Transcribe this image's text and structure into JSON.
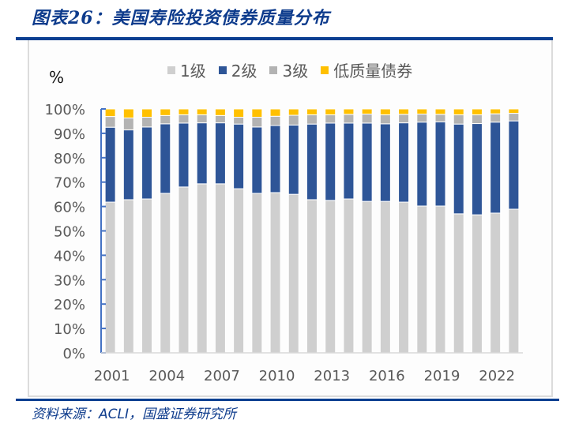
{
  "figure": {
    "title": "图表26：美国寿险投资债券质量分布",
    "source": "资料来源：ACLI，国盛证券研究所",
    "source_parts": [
      "资料来源：",
      "ACLI",
      "，国盛证券研究所"
    ]
  },
  "chart_data": {
    "type": "bar",
    "stacked": true,
    "title": "美国寿险投资债券质量分布",
    "unit_label": "%",
    "xlabel": "",
    "ylabel": "%",
    "ylim": [
      0,
      100
    ],
    "y_ticks": [
      "0%",
      "10%",
      "20%",
      "30%",
      "40%",
      "50%",
      "60%",
      "70%",
      "80%",
      "90%",
      "100%"
    ],
    "x_tick_labels": [
      "2001",
      "2004",
      "2007",
      "2010",
      "2013",
      "2016",
      "2019",
      "2022"
    ],
    "legend_position": "top",
    "grid": false,
    "categories": [
      "2001",
      "2002",
      "2003",
      "2004",
      "2005",
      "2006",
      "2007",
      "2008",
      "2009",
      "2010",
      "2011",
      "2012",
      "2013",
      "2014",
      "2015",
      "2016",
      "2017",
      "2018",
      "2019",
      "2020",
      "2021",
      "2022",
      "2023"
    ],
    "series": [
      {
        "name": "1级",
        "color": "#cfcfcf",
        "values": [
          61.8,
          62.8,
          63.1,
          65.4,
          68.0,
          69.3,
          69.3,
          67.3,
          65.4,
          65.7,
          65.0,
          62.8,
          62.5,
          63.1,
          62.1,
          62.1,
          61.8,
          60.2,
          60.2,
          57.0,
          56.6,
          57.3,
          58.9
        ]
      },
      {
        "name": "2级",
        "color": "#2e5597",
        "values": [
          30.7,
          28.6,
          29.5,
          28.5,
          26.2,
          25.0,
          25.0,
          26.5,
          27.2,
          27.5,
          28.4,
          31.0,
          31.7,
          31.1,
          32.1,
          31.8,
          32.5,
          34.4,
          34.5,
          36.8,
          37.4,
          37.3,
          36.2
        ]
      },
      {
        "name": "3级",
        "color": "#b3b3b3",
        "values": [
          4.4,
          4.9,
          4.0,
          3.4,
          3.4,
          3.3,
          3.0,
          2.8,
          4.0,
          3.8,
          4.0,
          3.8,
          3.4,
          3.6,
          3.7,
          3.7,
          3.5,
          3.3,
          3.1,
          3.8,
          3.6,
          3.4,
          3.1
        ]
      },
      {
        "name": "低质量债券",
        "color": "#ffc000",
        "values": [
          3.1,
          3.7,
          3.4,
          2.7,
          2.4,
          2.4,
          2.7,
          3.4,
          3.4,
          3.0,
          2.6,
          2.4,
          2.4,
          2.2,
          2.1,
          2.4,
          2.2,
          2.1,
          2.2,
          2.4,
          2.4,
          2.0,
          1.8
        ]
      }
    ]
  },
  "colors": {
    "title": "#0d3b8c",
    "rule": "#0a3f91",
    "axis": "#4472c4",
    "tick_text": "#595959"
  }
}
